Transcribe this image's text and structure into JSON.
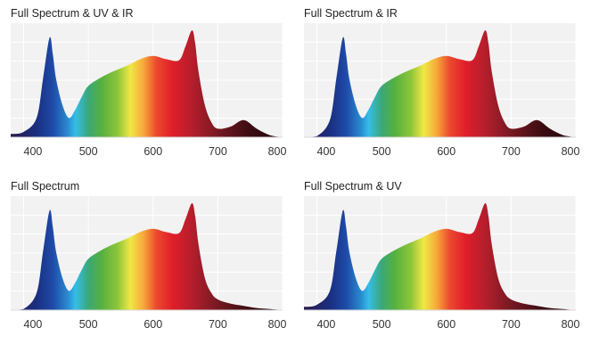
{
  "chart_data": [
    {
      "type": "area",
      "title": "Full Spectrum & UV & IR",
      "xlabel": "",
      "ylabel": "",
      "xlim": [
        400,
        800
      ],
      "xticks": [
        "400",
        "500",
        "600",
        "700",
        "800"
      ],
      "grid": true,
      "x": [
        380,
        400,
        420,
        430,
        440,
        445,
        450,
        460,
        470,
        480,
        490,
        500,
        520,
        540,
        560,
        580,
        600,
        620,
        640,
        650,
        660,
        665,
        670,
        680,
        690,
        700,
        720,
        740,
        760,
        780,
        800
      ],
      "values": [
        0.03,
        0.05,
        0.18,
        0.55,
        0.93,
        0.78,
        0.55,
        0.3,
        0.18,
        0.26,
        0.38,
        0.48,
        0.56,
        0.62,
        0.67,
        0.73,
        0.76,
        0.73,
        0.72,
        0.85,
        1.0,
        0.88,
        0.62,
        0.3,
        0.14,
        0.08,
        0.1,
        0.16,
        0.08,
        0.02,
        0.0
      ]
    },
    {
      "type": "area",
      "title": "Full Spectrum & IR",
      "xlabel": "",
      "ylabel": "",
      "xlim": [
        400,
        800
      ],
      "xticks": [
        "400",
        "500",
        "600",
        "700",
        "800"
      ],
      "grid": true,
      "x": [
        380,
        400,
        420,
        430,
        440,
        445,
        450,
        460,
        470,
        480,
        490,
        500,
        520,
        540,
        560,
        580,
        600,
        620,
        640,
        650,
        660,
        665,
        670,
        680,
        690,
        700,
        720,
        740,
        760,
        780,
        800
      ],
      "values": [
        0.0,
        0.01,
        0.16,
        0.55,
        0.93,
        0.78,
        0.55,
        0.3,
        0.18,
        0.26,
        0.38,
        0.48,
        0.56,
        0.62,
        0.67,
        0.73,
        0.76,
        0.73,
        0.72,
        0.85,
        1.0,
        0.88,
        0.62,
        0.3,
        0.14,
        0.08,
        0.1,
        0.16,
        0.08,
        0.02,
        0.0
      ]
    },
    {
      "type": "area",
      "title": "Full Spectrum",
      "xlabel": "",
      "ylabel": "",
      "xlim": [
        400,
        800
      ],
      "xticks": [
        "400",
        "500",
        "600",
        "700",
        "800"
      ],
      "grid": true,
      "x": [
        380,
        400,
        420,
        430,
        440,
        445,
        450,
        460,
        470,
        480,
        490,
        500,
        520,
        540,
        560,
        580,
        600,
        620,
        640,
        650,
        660,
        665,
        670,
        680,
        690,
        700,
        720,
        740,
        760,
        780,
        800
      ],
      "values": [
        0.0,
        0.01,
        0.16,
        0.55,
        0.93,
        0.78,
        0.55,
        0.3,
        0.18,
        0.26,
        0.38,
        0.48,
        0.56,
        0.62,
        0.67,
        0.73,
        0.76,
        0.73,
        0.72,
        0.85,
        1.0,
        0.88,
        0.62,
        0.3,
        0.16,
        0.1,
        0.06,
        0.04,
        0.02,
        0.01,
        0.0
      ]
    },
    {
      "type": "area",
      "title": "Full Spectrum & UV",
      "xlabel": "",
      "ylabel": "",
      "xlim": [
        400,
        800
      ],
      "xticks": [
        "400",
        "500",
        "600",
        "700",
        "800"
      ],
      "grid": true,
      "x": [
        380,
        400,
        420,
        430,
        440,
        445,
        450,
        460,
        470,
        480,
        490,
        500,
        520,
        540,
        560,
        580,
        600,
        620,
        640,
        650,
        660,
        665,
        670,
        680,
        690,
        700,
        720,
        740,
        760,
        780,
        800
      ],
      "values": [
        0.03,
        0.05,
        0.18,
        0.55,
        0.93,
        0.78,
        0.55,
        0.3,
        0.18,
        0.26,
        0.38,
        0.48,
        0.56,
        0.62,
        0.67,
        0.73,
        0.76,
        0.73,
        0.72,
        0.85,
        1.0,
        0.88,
        0.62,
        0.3,
        0.16,
        0.1,
        0.06,
        0.04,
        0.02,
        0.01,
        0.0
      ]
    }
  ],
  "colors": {
    "plot_background": "#f2f2f2",
    "grid": "#ffffff",
    "spectrum_stops": [
      {
        "nm": 380,
        "color": "#2a1a4a"
      },
      {
        "nm": 420,
        "color": "#1a2f80"
      },
      {
        "nm": 445,
        "color": "#1e4aa8"
      },
      {
        "nm": 468,
        "color": "#2a8ad0"
      },
      {
        "nm": 480,
        "color": "#35bde8"
      },
      {
        "nm": 500,
        "color": "#3aa878"
      },
      {
        "nm": 520,
        "color": "#55b040"
      },
      {
        "nm": 545,
        "color": "#8cc53a"
      },
      {
        "nm": 565,
        "color": "#f0e845"
      },
      {
        "nm": 585,
        "color": "#f6a93a"
      },
      {
        "nm": 605,
        "color": "#ec4a2e"
      },
      {
        "nm": 630,
        "color": "#e01e2a"
      },
      {
        "nm": 660,
        "color": "#b51e2c"
      },
      {
        "nm": 700,
        "color": "#761922"
      },
      {
        "nm": 750,
        "color": "#3a0c12"
      },
      {
        "nm": 800,
        "color": "#200609"
      }
    ]
  }
}
